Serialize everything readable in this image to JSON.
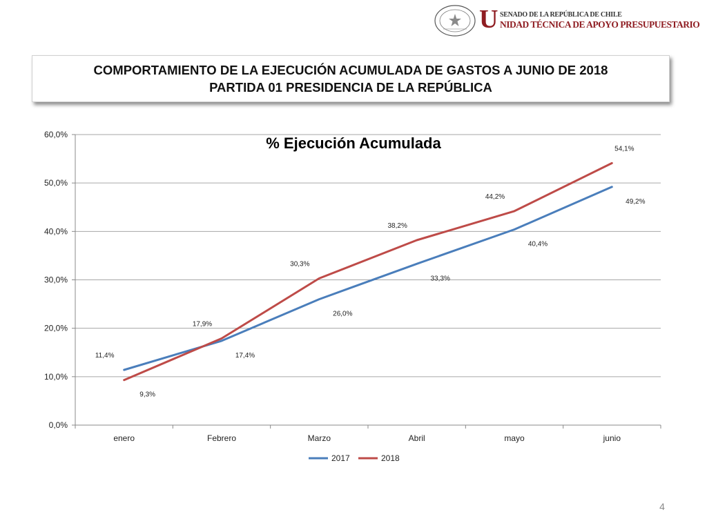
{
  "header": {
    "seal_text_top": "REPÚBLICA DE CHILE",
    "seal_text_bottom": "SENADO",
    "org_initial": "U",
    "org_senado": "SENADO DE LA REPÚBLICA DE CHILE",
    "org_unit": "NIDAD TÉCNICA DE APOYO PRESUPUESTARIO"
  },
  "banner": {
    "line1": "COMPORTAMIENTO DE LA EJECUCIÓN ACUMULADA DE GASTOS A JUNIO DE 2018",
    "line2": "PARTIDA 01 PRESIDENCIA DE LA REPÚBLICA"
  },
  "chart_data": {
    "type": "line",
    "title": "% Ejecución Acumulada",
    "categories": [
      "enero",
      "Febrero",
      "Marzo",
      "Abril",
      "mayo",
      "junio"
    ],
    "ylim": [
      0,
      60
    ],
    "yticks": [
      0,
      10,
      20,
      30,
      40,
      50,
      60
    ],
    "ytick_labels": [
      "0,0%",
      "10,0%",
      "20,0%",
      "30,0%",
      "40,0%",
      "50,0%",
      "60,0%"
    ],
    "grid": "horizontal",
    "legend_position": "bottom",
    "series": [
      {
        "name": "2017",
        "color": "#4a7ebb",
        "values": [
          11.4,
          17.4,
          26.0,
          33.3,
          40.4,
          49.2
        ],
        "labels": [
          "11,4%",
          "17,4%",
          "26,0%",
          "33,3%",
          "40,4%",
          "49,2%"
        ]
      },
      {
        "name": "2018",
        "color": "#be4b48",
        "values": [
          9.3,
          17.9,
          30.3,
          38.2,
          44.2,
          54.1
        ],
        "labels": [
          "9,3%",
          "17,9%",
          "30,3%",
          "38,2%",
          "44,2%",
          "54,1%"
        ]
      }
    ]
  },
  "page_number": "4"
}
